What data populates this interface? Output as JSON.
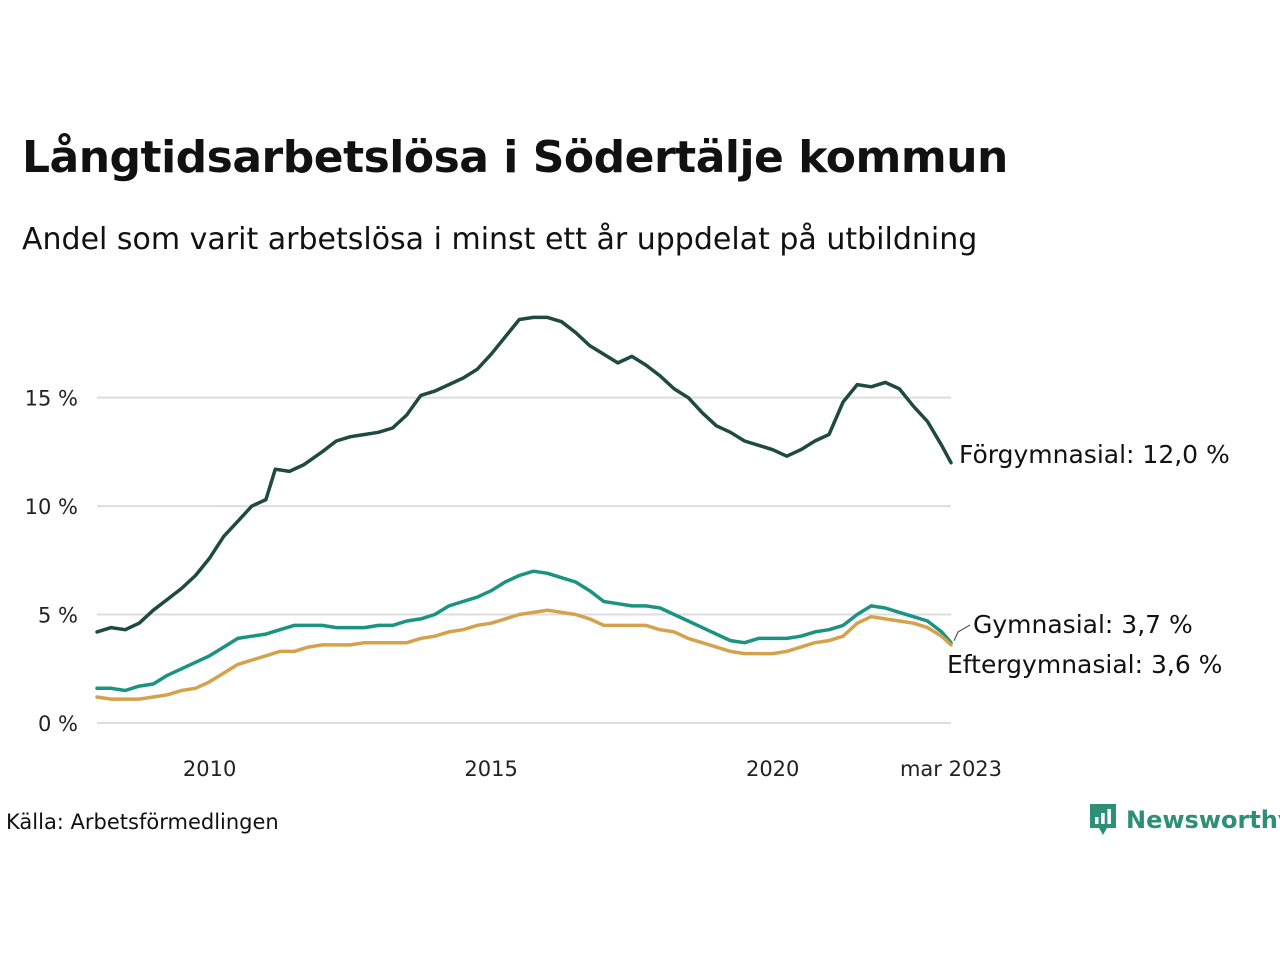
{
  "title": "Långtidsarbetslösa i Södertälje kommun",
  "subtitle": "Andel som varit arbetslösa i minst ett år uppdelat på utbildning",
  "source": "Källa: Arbetsförmedlingen",
  "brand": {
    "name": "Newsworthy",
    "icon": "newsworthy-logo-icon",
    "color": "#2d8f75"
  },
  "chart_data": {
    "type": "line",
    "x_range": [
      "2008-01",
      "2023-03"
    ],
    "x_ticks": [
      {
        "label": "2010",
        "date": "2010-01"
      },
      {
        "label": "2015",
        "date": "2015-01"
      },
      {
        "label": "2020",
        "date": "2020-01"
      },
      {
        "label": "mar 2023",
        "date": "2023-03"
      }
    ],
    "ylim": [
      0,
      19.5
    ],
    "y_ticks": [
      {
        "label": "0 %",
        "value": 0
      },
      {
        "label": "5 %",
        "value": 5
      },
      {
        "label": "10 %",
        "value": 10
      },
      {
        "label": "15 %",
        "value": 15
      }
    ],
    "grid": "horizontal",
    "series": [
      {
        "name": "Förgymnasial",
        "end_label": "Förgymnasial: 12,0 %",
        "color": "#1f4a40",
        "points": [
          [
            "2008-01",
            4.2
          ],
          [
            "2008-04",
            4.4
          ],
          [
            "2008-07",
            4.3
          ],
          [
            "2008-10",
            4.6
          ],
          [
            "2009-01",
            5.2
          ],
          [
            "2009-04",
            5.7
          ],
          [
            "2009-07",
            6.2
          ],
          [
            "2009-10",
            6.8
          ],
          [
            "2010-01",
            7.6
          ],
          [
            "2010-04",
            8.6
          ],
          [
            "2010-07",
            9.3
          ],
          [
            "2010-10",
            10.0
          ],
          [
            "2011-01",
            10.3
          ],
          [
            "2011-03",
            11.7
          ],
          [
            "2011-06",
            11.6
          ],
          [
            "2011-09",
            11.9
          ],
          [
            "2012-01",
            12.5
          ],
          [
            "2012-04",
            13.0
          ],
          [
            "2012-07",
            13.2
          ],
          [
            "2012-10",
            13.3
          ],
          [
            "2013-01",
            13.4
          ],
          [
            "2013-04",
            13.6
          ],
          [
            "2013-07",
            14.2
          ],
          [
            "2013-10",
            15.1
          ],
          [
            "2014-01",
            15.3
          ],
          [
            "2014-04",
            15.6
          ],
          [
            "2014-07",
            15.9
          ],
          [
            "2014-10",
            16.3
          ],
          [
            "2015-01",
            17.0
          ],
          [
            "2015-04",
            17.8
          ],
          [
            "2015-07",
            18.6
          ],
          [
            "2015-10",
            18.7
          ],
          [
            "2016-01",
            18.7
          ],
          [
            "2016-04",
            18.5
          ],
          [
            "2016-07",
            18.0
          ],
          [
            "2016-10",
            17.4
          ],
          [
            "2017-01",
            17.0
          ],
          [
            "2017-04",
            16.6
          ],
          [
            "2017-07",
            16.9
          ],
          [
            "2017-10",
            16.5
          ],
          [
            "2018-01",
            16.0
          ],
          [
            "2018-04",
            15.4
          ],
          [
            "2018-07",
            15.0
          ],
          [
            "2018-10",
            14.3
          ],
          [
            "2019-01",
            13.7
          ],
          [
            "2019-04",
            13.4
          ],
          [
            "2019-07",
            13.0
          ],
          [
            "2019-10",
            12.8
          ],
          [
            "2020-01",
            12.6
          ],
          [
            "2020-04",
            12.3
          ],
          [
            "2020-07",
            12.6
          ],
          [
            "2020-10",
            13.0
          ],
          [
            "2021-01",
            13.3
          ],
          [
            "2021-04",
            14.8
          ],
          [
            "2021-07",
            15.6
          ],
          [
            "2021-10",
            15.5
          ],
          [
            "2022-01",
            15.7
          ],
          [
            "2022-04",
            15.4
          ],
          [
            "2022-07",
            14.6
          ],
          [
            "2022-10",
            13.9
          ],
          [
            "2023-01",
            12.8
          ],
          [
            "2023-03",
            12.0
          ]
        ]
      },
      {
        "name": "Gymnasial",
        "end_label": "Gymnasial:  3,7 %",
        "color": "#1a9480",
        "points": [
          [
            "2008-01",
            1.6
          ],
          [
            "2008-04",
            1.6
          ],
          [
            "2008-07",
            1.5
          ],
          [
            "2008-10",
            1.7
          ],
          [
            "2009-01",
            1.8
          ],
          [
            "2009-04",
            2.2
          ],
          [
            "2009-07",
            2.5
          ],
          [
            "2009-10",
            2.8
          ],
          [
            "2010-01",
            3.1
          ],
          [
            "2010-04",
            3.5
          ],
          [
            "2010-07",
            3.9
          ],
          [
            "2010-10",
            4.0
          ],
          [
            "2011-01",
            4.1
          ],
          [
            "2011-04",
            4.3
          ],
          [
            "2011-07",
            4.5
          ],
          [
            "2011-10",
            4.5
          ],
          [
            "2012-01",
            4.5
          ],
          [
            "2012-04",
            4.4
          ],
          [
            "2012-07",
            4.4
          ],
          [
            "2012-10",
            4.4
          ],
          [
            "2013-01",
            4.5
          ],
          [
            "2013-04",
            4.5
          ],
          [
            "2013-07",
            4.7
          ],
          [
            "2013-10",
            4.8
          ],
          [
            "2014-01",
            5.0
          ],
          [
            "2014-04",
            5.4
          ],
          [
            "2014-07",
            5.6
          ],
          [
            "2014-10",
            5.8
          ],
          [
            "2015-01",
            6.1
          ],
          [
            "2015-04",
            6.5
          ],
          [
            "2015-07",
            6.8
          ],
          [
            "2015-10",
            7.0
          ],
          [
            "2016-01",
            6.9
          ],
          [
            "2016-04",
            6.7
          ],
          [
            "2016-07",
            6.5
          ],
          [
            "2016-10",
            6.1
          ],
          [
            "2017-01",
            5.6
          ],
          [
            "2017-04",
            5.5
          ],
          [
            "2017-07",
            5.4
          ],
          [
            "2017-10",
            5.4
          ],
          [
            "2018-01",
            5.3
          ],
          [
            "2018-04",
            5.0
          ],
          [
            "2018-07",
            4.7
          ],
          [
            "2018-10",
            4.4
          ],
          [
            "2019-01",
            4.1
          ],
          [
            "2019-04",
            3.8
          ],
          [
            "2019-07",
            3.7
          ],
          [
            "2019-10",
            3.9
          ],
          [
            "2020-01",
            3.9
          ],
          [
            "2020-04",
            3.9
          ],
          [
            "2020-07",
            4.0
          ],
          [
            "2020-10",
            4.2
          ],
          [
            "2021-01",
            4.3
          ],
          [
            "2021-04",
            4.5
          ],
          [
            "2021-07",
            5.0
          ],
          [
            "2021-10",
            5.4
          ],
          [
            "2022-01",
            5.3
          ],
          [
            "2022-04",
            5.1
          ],
          [
            "2022-07",
            4.9
          ],
          [
            "2022-10",
            4.7
          ],
          [
            "2023-01",
            4.2
          ],
          [
            "2023-03",
            3.7
          ]
        ]
      },
      {
        "name": "Eftergymnasial",
        "end_label": "Eftergymnasial:  3,6 %",
        "color": "#d4a24c",
        "points": [
          [
            "2008-01",
            1.2
          ],
          [
            "2008-04",
            1.1
          ],
          [
            "2008-07",
            1.1
          ],
          [
            "2008-10",
            1.1
          ],
          [
            "2009-01",
            1.2
          ],
          [
            "2009-04",
            1.3
          ],
          [
            "2009-07",
            1.5
          ],
          [
            "2009-10",
            1.6
          ],
          [
            "2010-01",
            1.9
          ],
          [
            "2010-04",
            2.3
          ],
          [
            "2010-07",
            2.7
          ],
          [
            "2010-10",
            2.9
          ],
          [
            "2011-01",
            3.1
          ],
          [
            "2011-04",
            3.3
          ],
          [
            "2011-07",
            3.3
          ],
          [
            "2011-10",
            3.5
          ],
          [
            "2012-01",
            3.6
          ],
          [
            "2012-04",
            3.6
          ],
          [
            "2012-07",
            3.6
          ],
          [
            "2012-10",
            3.7
          ],
          [
            "2013-01",
            3.7
          ],
          [
            "2013-04",
            3.7
          ],
          [
            "2013-07",
            3.7
          ],
          [
            "2013-10",
            3.9
          ],
          [
            "2014-01",
            4.0
          ],
          [
            "2014-04",
            4.2
          ],
          [
            "2014-07",
            4.3
          ],
          [
            "2014-10",
            4.5
          ],
          [
            "2015-01",
            4.6
          ],
          [
            "2015-04",
            4.8
          ],
          [
            "2015-07",
            5.0
          ],
          [
            "2015-10",
            5.1
          ],
          [
            "2016-01",
            5.2
          ],
          [
            "2016-04",
            5.1
          ],
          [
            "2016-07",
            5.0
          ],
          [
            "2016-10",
            4.8
          ],
          [
            "2017-01",
            4.5
          ],
          [
            "2017-04",
            4.5
          ],
          [
            "2017-07",
            4.5
          ],
          [
            "2017-10",
            4.5
          ],
          [
            "2018-01",
            4.3
          ],
          [
            "2018-04",
            4.2
          ],
          [
            "2018-07",
            3.9
          ],
          [
            "2018-10",
            3.7
          ],
          [
            "2019-01",
            3.5
          ],
          [
            "2019-04",
            3.3
          ],
          [
            "2019-07",
            3.2
          ],
          [
            "2019-10",
            3.2
          ],
          [
            "2020-01",
            3.2
          ],
          [
            "2020-04",
            3.3
          ],
          [
            "2020-07",
            3.5
          ],
          [
            "2020-10",
            3.7
          ],
          [
            "2021-01",
            3.8
          ],
          [
            "2021-04",
            4.0
          ],
          [
            "2021-07",
            4.6
          ],
          [
            "2021-10",
            4.9
          ],
          [
            "2022-01",
            4.8
          ],
          [
            "2022-04",
            4.7
          ],
          [
            "2022-07",
            4.6
          ],
          [
            "2022-10",
            4.4
          ],
          [
            "2023-01",
            4.0
          ],
          [
            "2023-03",
            3.6
          ]
        ]
      }
    ]
  }
}
